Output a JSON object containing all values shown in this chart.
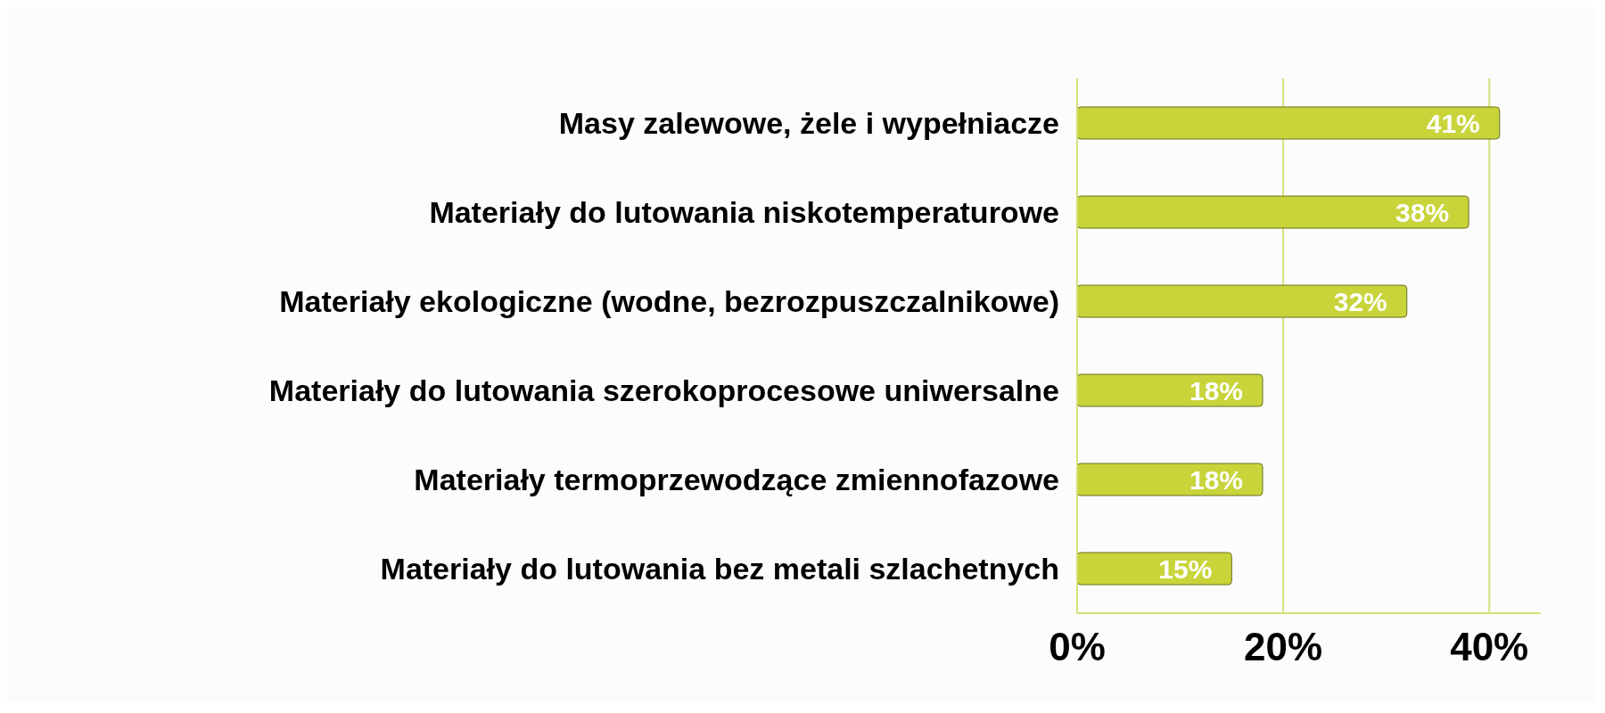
{
  "chart_data": {
    "type": "bar",
    "orientation": "horizontal",
    "categories": [
      "Masy zalewowe, żele i wypełniacze",
      "Materiały do lutowania niskotemperaturowe",
      "Materiały ekologiczne (wodne, bezrozpuszczalnikowe)",
      "Materiały do lutowania szerokoprocesowe uniwersalne",
      "Materiały termoprzewodzące zmiennofazowe",
      "Materiały do lutowania bez metali szlachetnych"
    ],
    "values": [
      41,
      38,
      32,
      18,
      18,
      15
    ],
    "value_labels": [
      "41%",
      "38%",
      "32%",
      "18%",
      "18%",
      "15%"
    ],
    "color": "#c8d43a",
    "xlim": [
      0,
      45
    ],
    "xticks": [
      {
        "value": 0,
        "label": "0%"
      },
      {
        "value": 20,
        "label": "20%"
      },
      {
        "value": 40,
        "label": "40%"
      }
    ],
    "grid": "x"
  }
}
